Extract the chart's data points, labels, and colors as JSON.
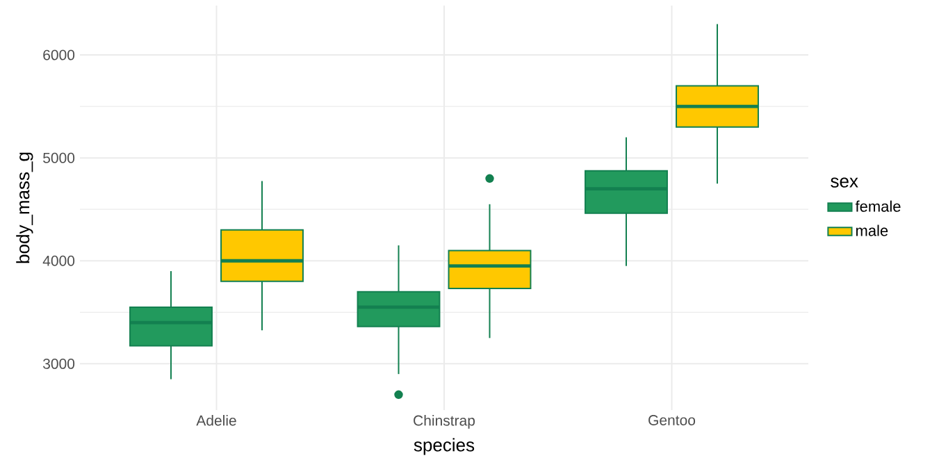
{
  "chart_data": {
    "type": "box",
    "xlabel": "species",
    "ylabel": "body_mass_g",
    "legend_title": "sex",
    "legend": "right",
    "grid": true,
    "categories": [
      "Adelie",
      "Chinstrap",
      "Gentoo"
    ],
    "ylim": [
      2550,
      6480
    ],
    "yticks": [
      3000,
      4000,
      5000,
      6000
    ],
    "series": [
      {
        "name": "female",
        "color": "#229a5d",
        "boxes": [
          {
            "low": 2850,
            "q1": 3175,
            "median": 3400,
            "q3": 3550,
            "high": 3900
          },
          {
            "low": 2900,
            "q1": 3362,
            "median": 3550,
            "q3": 3700,
            "high": 4150,
            "outliers": [
              2700
            ]
          },
          {
            "low": 3950,
            "q1": 4462,
            "median": 4700,
            "q3": 4875,
            "high": 5200
          }
        ]
      },
      {
        "name": "male",
        "color": "#ffc800",
        "boxes": [
          {
            "low": 3325,
            "q1": 3800,
            "median": 4000,
            "q3": 4300,
            "high": 4775
          },
          {
            "low": 3250,
            "q1": 3731,
            "median": 3950,
            "q3": 4100,
            "high": 4550,
            "outliers": [
              4800
            ]
          },
          {
            "low": 4750,
            "q1": 5300,
            "median": 5500,
            "q3": 5700,
            "high": 6300
          }
        ]
      }
    ]
  }
}
